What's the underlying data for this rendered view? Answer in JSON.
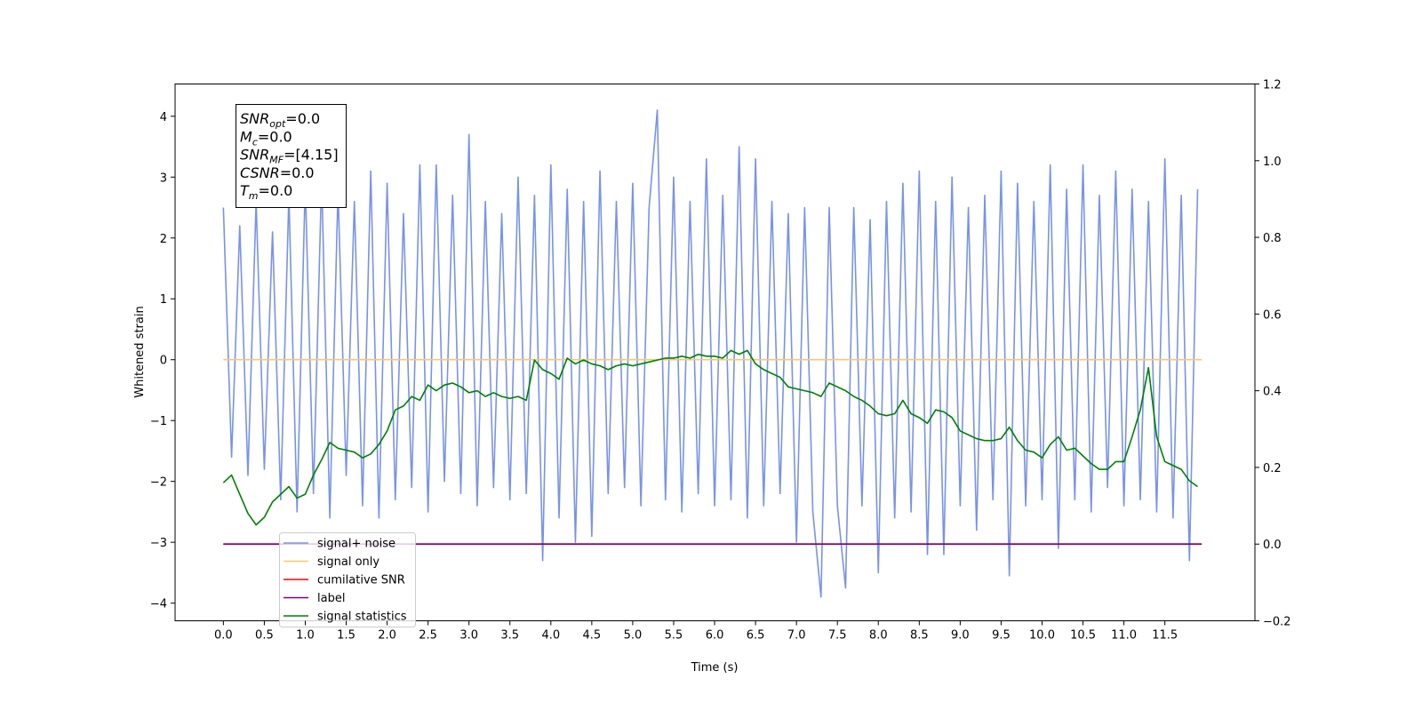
{
  "chart_data": {
    "type": "line",
    "xlabel": "Time (s)",
    "ylabel": "Whitened strain",
    "xlim": [
      -0.59,
      12.6
    ],
    "ylim": [
      -4.29,
      4.53
    ],
    "y2lim": [
      -0.2,
      1.2
    ],
    "xticks": [
      {
        "value": 0,
        "label": "0.0"
      },
      0.5,
      {
        "value": 1,
        "label": "1.0"
      },
      1.5,
      {
        "value": 2,
        "label": "2.0"
      },
      2.5,
      {
        "value": 3,
        "label": "3.0"
      },
      3.5,
      {
        "value": 4,
        "label": "4.0"
      },
      4.5,
      {
        "value": 5,
        "label": "5.0"
      },
      5.5,
      {
        "value": 6,
        "label": "6.0"
      },
      6.5,
      {
        "value": 7,
        "label": "7.0"
      },
      7.5,
      {
        "value": 8,
        "label": "8.0"
      },
      8.5,
      {
        "value": 9,
        "label": "9.0"
      },
      9.5,
      {
        "value": 10,
        "label": "10.0"
      },
      10.5,
      {
        "value": 11,
        "label": "11.0"
      },
      11.5
    ],
    "yticks": [
      {
        "value": -4,
        "label": "−4"
      },
      {
        "value": -3,
        "label": "−3"
      },
      {
        "value": -2,
        "label": "−2"
      },
      {
        "value": -1,
        "label": "−1"
      },
      0,
      1,
      2,
      3,
      4
    ],
    "y2ticks": [
      {
        "value": -0.2,
        "label": "−0.2"
      },
      {
        "value": 0,
        "label": "0.0"
      },
      0.2,
      0.4,
      0.6,
      0.8,
      {
        "value": 1,
        "label": "1.0"
      },
      1.2
    ],
    "x": [
      0.0,
      0.1,
      0.2,
      0.3,
      0.4,
      0.5,
      0.6,
      0.7,
      0.8,
      0.9,
      1.0,
      1.1,
      1.2,
      1.3,
      1.4,
      1.5,
      1.6,
      1.7,
      1.8,
      1.9,
      2.0,
      2.1,
      2.2,
      2.3,
      2.4,
      2.5,
      2.6,
      2.7,
      2.8,
      2.9,
      3.0,
      3.1,
      3.2,
      3.3,
      3.4,
      3.5,
      3.6,
      3.7,
      3.8,
      3.9,
      4.0,
      4.1,
      4.2,
      4.3,
      4.4,
      4.5,
      4.6,
      4.7,
      4.8,
      4.9,
      5.0,
      5.1,
      5.2,
      5.3,
      5.4,
      5.5,
      5.6,
      5.7,
      5.8,
      5.9,
      6.0,
      6.1,
      6.2,
      6.3,
      6.4,
      6.5,
      6.6,
      6.7,
      6.8,
      6.9,
      7.0,
      7.1,
      7.2,
      7.3,
      7.4,
      7.5,
      7.6,
      7.7,
      7.8,
      7.9,
      8.0,
      8.1,
      8.2,
      8.3,
      8.4,
      8.5,
      8.6,
      8.7,
      8.8,
      8.9,
      9.0,
      9.1,
      9.2,
      9.3,
      9.4,
      9.5,
      9.6,
      9.7,
      9.8,
      9.9,
      10.0,
      10.1,
      10.2,
      10.3,
      10.4,
      10.5,
      10.6,
      10.7,
      10.8,
      10.9,
      11.0,
      11.1,
      11.2,
      11.3,
      11.4,
      11.5,
      11.6,
      11.7,
      11.8,
      11.9
    ],
    "series": [
      {
        "name": "signal+ noise",
        "color": "#7893e8",
        "values": [
          2.5,
          -1.6,
          2.2,
          -1.9,
          2.6,
          -1.8,
          2.1,
          -2.3,
          2.7,
          -2.5,
          2.9,
          -2.2,
          3.0,
          -2.6,
          2.8,
          -1.9,
          2.6,
          -2.4,
          3.1,
          -2.6,
          2.9,
          -2.3,
          2.4,
          -2.1,
          3.2,
          -2.5,
          3.2,
          -2.0,
          2.7,
          -2.2,
          3.7,
          -2.4,
          2.6,
          -2.1,
          2.4,
          -2.3,
          3.0,
          -2.2,
          2.7,
          -3.3,
          3.2,
          -2.6,
          2.8,
          -3.0,
          2.6,
          -2.9,
          3.1,
          -2.2,
          2.6,
          -2.1,
          2.9,
          -2.4,
          2.5,
          4.1,
          -2.3,
          3.0,
          -2.5,
          2.6,
          -2.2,
          3.3,
          -2.4,
          2.7,
          -2.3,
          3.5,
          -2.6,
          3.3,
          -2.4,
          2.6,
          -2.2,
          2.4,
          -3.0,
          2.5,
          -2.5,
          -3.9,
          2.5,
          -2.4,
          -3.75,
          2.5,
          -2.4,
          2.3,
          -3.5,
          2.6,
          -2.6,
          2.9,
          -2.5,
          3.1,
          -3.2,
          2.6,
          -3.2,
          3.0,
          -2.4,
          2.5,
          -2.8,
          2.7,
          -2.3,
          3.1,
          -3.55,
          2.9,
          -2.4,
          2.6,
          -2.3,
          3.2,
          -3.1,
          2.8,
          -2.3,
          3.2,
          -2.5,
          2.7,
          -2.1,
          3.1,
          -2.4,
          2.8,
          -2.3,
          2.6,
          -2.5,
          3.3,
          -2.6,
          2.7,
          -3.3,
          2.8
        ]
      },
      {
        "name": "signal only",
        "color": "#ffc76a",
        "x": [
          0,
          11.95
        ],
        "values": [
          0,
          0
        ]
      },
      {
        "name": "cumilative SNR",
        "color": "red",
        "axis": "y2",
        "x": [
          0,
          11.95
        ],
        "values": [
          0,
          0
        ]
      },
      {
        "name": "label",
        "color": "purple",
        "axis": "y2",
        "x": [
          0,
          11.95
        ],
        "values": [
          0,
          0
        ]
      },
      {
        "name": "signal statistics",
        "color": "green",
        "axis": "y2",
        "values": [
          0.16,
          0.18,
          0.13,
          0.08,
          0.05,
          0.07,
          0.11,
          0.13,
          0.15,
          0.12,
          0.13,
          0.18,
          0.22,
          0.265,
          0.25,
          0.245,
          0.24,
          0.225,
          0.235,
          0.26,
          0.295,
          0.35,
          0.36,
          0.385,
          0.375,
          0.415,
          0.4,
          0.415,
          0.42,
          0.41,
          0.395,
          0.4,
          0.385,
          0.395,
          0.385,
          0.38,
          0.385,
          0.375,
          0.48,
          0.455,
          0.445,
          0.43,
          0.485,
          0.47,
          0.48,
          0.47,
          0.465,
          0.455,
          0.465,
          0.47,
          0.465,
          0.47,
          0.475,
          0.48,
          0.485,
          0.485,
          0.49,
          0.485,
          0.495,
          0.49,
          0.49,
          0.485,
          0.505,
          0.495,
          0.505,
          0.47,
          0.455,
          0.445,
          0.435,
          0.41,
          0.405,
          0.4,
          0.395,
          0.385,
          0.42,
          0.41,
          0.4,
          0.385,
          0.375,
          0.36,
          0.34,
          0.335,
          0.34,
          0.375,
          0.34,
          0.33,
          0.315,
          0.35,
          0.345,
          0.33,
          0.295,
          0.285,
          0.275,
          0.27,
          0.27,
          0.275,
          0.305,
          0.27,
          0.245,
          0.24,
          0.225,
          0.26,
          0.28,
          0.245,
          0.25,
          0.23,
          0.21,
          0.195,
          0.195,
          0.215,
          0.215,
          0.28,
          0.35,
          0.46,
          0.28,
          0.215,
          0.205,
          0.195,
          0.165,
          0.15
        ]
      }
    ],
    "annotations": [
      {
        "base": "SNR",
        "sub": "opt",
        "rest": "=0.0"
      },
      {
        "base": "M",
        "sub": "c",
        "rest": "=0.0"
      },
      {
        "base": "SNR",
        "sub": "MF",
        "rest": "=[4.15]"
      },
      {
        "base": "CSNR",
        "rest": "=0.0"
      },
      {
        "base": "T",
        "sub": "m",
        "rest": "=0.0"
      }
    ]
  }
}
